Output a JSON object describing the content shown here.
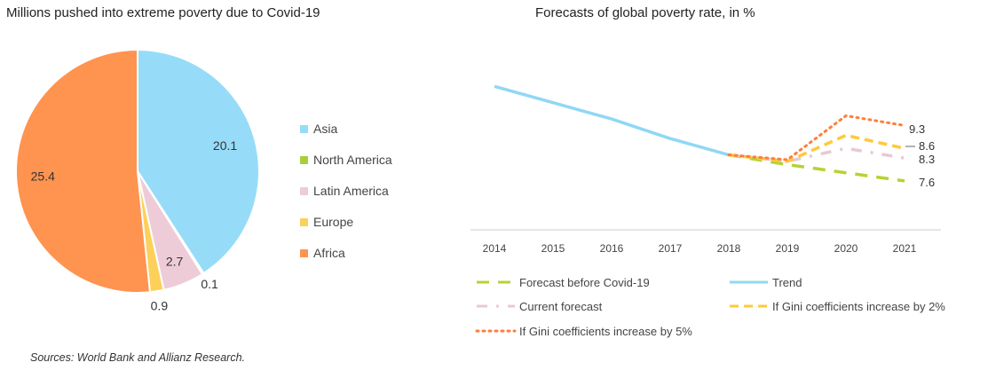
{
  "chart_data": [
    {
      "type": "pie",
      "title": "Millions pushed into extreme poverty due to Covid-19",
      "categories": [
        "Asia",
        "North America",
        "Latin America",
        "Europe",
        "Africa"
      ],
      "values": [
        20.1,
        0.1,
        2.7,
        0.9,
        25.4
      ],
      "data_labels": [
        "20.1",
        "0.1",
        "2.7",
        "0.9",
        "25.4"
      ],
      "colors": [
        "#96dcf8",
        "#a9cf38",
        "#edccd8",
        "#fdd05a",
        "#ff9350"
      ],
      "legend_placement": "right"
    },
    {
      "type": "line",
      "title": "Forecasts of global poverty rate, in %",
      "x": [
        "2014",
        "2015",
        "2016",
        "2017",
        "2018",
        "2019",
        "2020",
        "2021"
      ],
      "ylim": [
        6.1,
        11
      ],
      "grid": false,
      "legend_placement": "bottom",
      "series": [
        {
          "name": "Forecast before Covid-19",
          "color": "#b5d334",
          "style": "long-dash",
          "values": [
            null,
            null,
            null,
            null,
            8.4,
            8.1,
            7.85,
            7.6
          ],
          "end_label": "7.6"
        },
        {
          "name": "Trend",
          "color": "#8fd8f5",
          "style": "solid",
          "values": [
            10.5,
            10.0,
            9.5,
            8.9,
            8.4,
            null,
            null,
            null
          ],
          "end_label": ""
        },
        {
          "name": "Current forecast",
          "color": "#e8c9d3",
          "style": "dash-dot",
          "values": [
            null,
            null,
            null,
            null,
            8.4,
            8.2,
            8.6,
            8.3
          ],
          "end_label": "8.3"
        },
        {
          "name": "If Gini coefficients increase by 2%",
          "color": "#ffc93c",
          "style": "dash",
          "values": [
            null,
            null,
            null,
            null,
            8.4,
            8.2,
            9.0,
            8.6
          ],
          "end_label": "8.6"
        },
        {
          "name": "If Gini coefficients increase by 5%",
          "color": "#ff7e3a",
          "style": "dot",
          "values": [
            null,
            null,
            null,
            null,
            8.4,
            8.25,
            9.6,
            9.3
          ],
          "end_label": "9.3"
        }
      ]
    }
  ],
  "source": "Sources: World Bank and Allianz Research."
}
